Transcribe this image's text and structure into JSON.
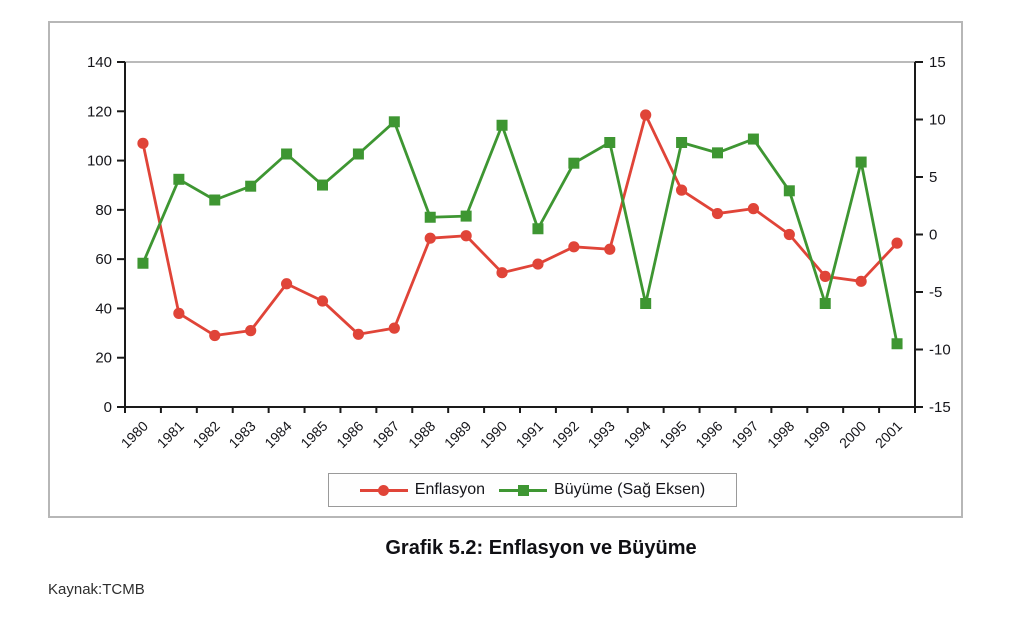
{
  "caption": "Grafik 5.2: Enflasyon ve Büyüme",
  "source": "Kaynak:TCMB",
  "chart_data": {
    "type": "line",
    "title": "Grafik 5.2: Enflasyon ve Büyüme",
    "categories": [
      "1980",
      "1981",
      "1982",
      "1983",
      "1984",
      "1985",
      "1986",
      "1987",
      "1988",
      "1989",
      "1990",
      "1991",
      "1992",
      "1993",
      "1994",
      "1995",
      "1996",
      "1997",
      "1998",
      "1999",
      "2000",
      "2001"
    ],
    "series": [
      {
        "name": "Enflasyon",
        "axis": "left",
        "color": "#e04438",
        "marker": "circle",
        "values": [
          107,
          38,
          29,
          31,
          50,
          43,
          29.5,
          32,
          68.5,
          69.5,
          54.5,
          58,
          65,
          64,
          118.5,
          88,
          78.5,
          80.5,
          70,
          53,
          51,
          66.5
        ]
      },
      {
        "name": "Büyüme (Sağ Eksen)",
        "axis": "right",
        "color": "#3e9632",
        "marker": "square",
        "values": [
          -2.5,
          4.8,
          3.0,
          4.2,
          7.0,
          4.3,
          7.0,
          9.8,
          1.5,
          1.6,
          9.5,
          0.5,
          6.2,
          8.0,
          -6.0,
          8.0,
          7.1,
          8.3,
          3.8,
          -6.0,
          6.3,
          -9.5
        ]
      }
    ],
    "left_axis": {
      "ticks": [
        0,
        20,
        40,
        60,
        80,
        100,
        120,
        140
      ],
      "range": [
        0,
        140
      ]
    },
    "right_axis": {
      "ticks": [
        -15,
        -10,
        -5,
        0,
        5,
        10,
        15
      ],
      "range": [
        -15,
        15
      ]
    },
    "xlabel": "",
    "ylabel": "",
    "grid": "top-line-only",
    "legend_position": "bottom"
  }
}
